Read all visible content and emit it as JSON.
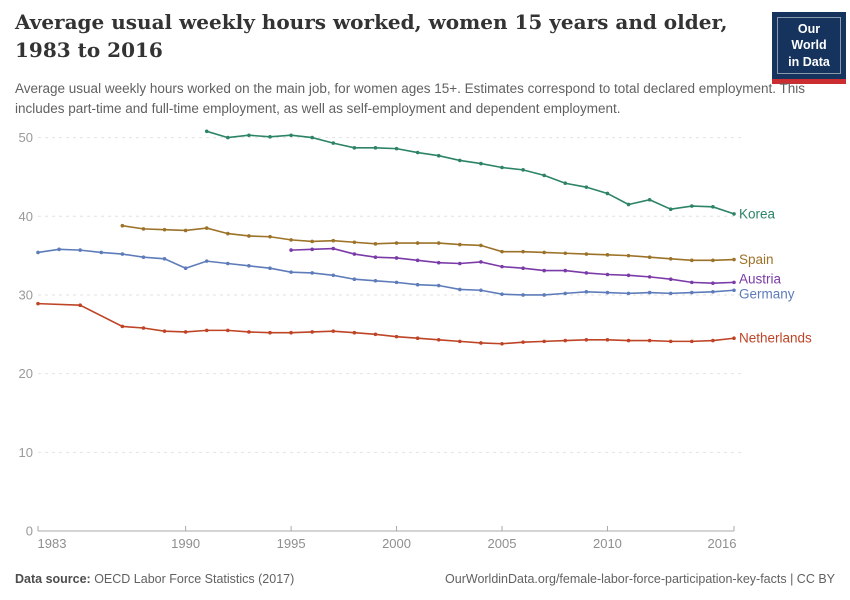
{
  "header": {
    "title": "Average usual weekly hours worked, women 15 years and older, 1983 to 2016",
    "subtitle": "Average usual weekly hours worked on the main job, for women ages 15+. Estimates correspond to total declared employment. This includes part-time and full-time employment, as well as self-employment and dependent employment."
  },
  "logo": {
    "line1": "Our World",
    "line2": "in Data",
    "bg_color": "#15335D",
    "bar_color": "#CB2D30"
  },
  "footer": {
    "data_source_label": "Data source:",
    "data_source_value": " OECD Labor Force Statistics (2017)",
    "attribution": "OurWorldinData.org/female-labor-force-participation-key-facts | CC BY"
  },
  "chart_data": {
    "type": "line",
    "title": "Average usual weekly hours worked, women 15 years and older, 1983 to 2016",
    "xlabel": "",
    "ylabel": "",
    "xlim": [
      1983,
      2016
    ],
    "ylim": [
      0,
      50
    ],
    "x_ticks": [
      1983,
      1990,
      1995,
      2000,
      2005,
      2010,
      2016
    ],
    "y_ticks": [
      0,
      10,
      20,
      30,
      40,
      50
    ],
    "grid": true,
    "legend_position": "right-end-labels",
    "axis_color": "#a8a8a8",
    "gridline_color": "#e2e2e2",
    "tick_label_color": "#8f8f8f",
    "series": [
      {
        "name": "Korea",
        "color": "#2C8465",
        "points": [
          [
            1991,
            50.8
          ],
          [
            1992,
            50.0
          ],
          [
            1993,
            50.3
          ],
          [
            1994,
            50.1
          ],
          [
            1995,
            50.3
          ],
          [
            1996,
            50.0
          ],
          [
            1997,
            49.3
          ],
          [
            1998,
            48.7
          ],
          [
            1999,
            48.7
          ],
          [
            2000,
            48.6
          ],
          [
            2001,
            48.1
          ],
          [
            2002,
            47.7
          ],
          [
            2003,
            47.1
          ],
          [
            2004,
            46.7
          ],
          [
            2005,
            46.2
          ],
          [
            2006,
            45.9
          ],
          [
            2007,
            45.2
          ],
          [
            2008,
            44.2
          ],
          [
            2009,
            43.7
          ],
          [
            2010,
            42.9
          ],
          [
            2011,
            41.5
          ],
          [
            2012,
            42.1
          ],
          [
            2013,
            40.9
          ],
          [
            2014,
            41.3
          ],
          [
            2015,
            41.2
          ],
          [
            2016,
            40.3
          ]
        ]
      },
      {
        "name": "Spain",
        "color": "#9C7228",
        "points": [
          [
            1987,
            38.8
          ],
          [
            1988,
            38.4
          ],
          [
            1989,
            38.3
          ],
          [
            1990,
            38.2
          ],
          [
            1991,
            38.5
          ],
          [
            1992,
            37.8
          ],
          [
            1993,
            37.5
          ],
          [
            1994,
            37.4
          ],
          [
            1995,
            37.0
          ],
          [
            1996,
            36.8
          ],
          [
            1997,
            36.9
          ],
          [
            1998,
            36.7
          ],
          [
            1999,
            36.5
          ],
          [
            2000,
            36.6
          ],
          [
            2001,
            36.6
          ],
          [
            2002,
            36.6
          ],
          [
            2003,
            36.4
          ],
          [
            2004,
            36.3
          ],
          [
            2005,
            35.5
          ],
          [
            2006,
            35.5
          ],
          [
            2007,
            35.4
          ],
          [
            2008,
            35.3
          ],
          [
            2009,
            35.2
          ],
          [
            2010,
            35.1
          ],
          [
            2011,
            35.0
          ],
          [
            2012,
            34.8
          ],
          [
            2013,
            34.6
          ],
          [
            2014,
            34.4
          ],
          [
            2015,
            34.4
          ],
          [
            2016,
            34.5
          ]
        ]
      },
      {
        "name": "Austria",
        "color": "#7A3BA8",
        "points": [
          [
            1995,
            35.7
          ],
          [
            1996,
            35.8
          ],
          [
            1997,
            35.9
          ],
          [
            1998,
            35.2
          ],
          [
            1999,
            34.8
          ],
          [
            2000,
            34.7
          ],
          [
            2001,
            34.4
          ],
          [
            2002,
            34.1
          ],
          [
            2003,
            34.0
          ],
          [
            2004,
            34.2
          ],
          [
            2005,
            33.6
          ],
          [
            2006,
            33.4
          ],
          [
            2007,
            33.1
          ],
          [
            2008,
            33.1
          ],
          [
            2009,
            32.8
          ],
          [
            2010,
            32.6
          ],
          [
            2011,
            32.5
          ],
          [
            2012,
            32.3
          ],
          [
            2013,
            32.0
          ],
          [
            2014,
            31.6
          ],
          [
            2015,
            31.5
          ],
          [
            2016,
            31.6
          ]
        ]
      },
      {
        "name": "Germany",
        "color": "#5E7CBA",
        "points": [
          [
            1983,
            35.4
          ],
          [
            1984,
            35.8
          ],
          [
            1985,
            35.7
          ],
          [
            1986,
            35.4
          ],
          [
            1987,
            35.2
          ],
          [
            1988,
            34.8
          ],
          [
            1989,
            34.6
          ],
          [
            1990,
            33.4
          ],
          [
            1991,
            34.3
          ],
          [
            1992,
            34.0
          ],
          [
            1993,
            33.7
          ],
          [
            1994,
            33.4
          ],
          [
            1995,
            32.9
          ],
          [
            1996,
            32.8
          ],
          [
            1997,
            32.5
          ],
          [
            1998,
            32.0
          ],
          [
            1999,
            31.8
          ],
          [
            2000,
            31.6
          ],
          [
            2001,
            31.3
          ],
          [
            2002,
            31.2
          ],
          [
            2003,
            30.7
          ],
          [
            2004,
            30.6
          ],
          [
            2005,
            30.1
          ],
          [
            2006,
            30.0
          ],
          [
            2007,
            30.0
          ],
          [
            2008,
            30.2
          ],
          [
            2009,
            30.4
          ],
          [
            2010,
            30.3
          ],
          [
            2011,
            30.2
          ],
          [
            2012,
            30.3
          ],
          [
            2013,
            30.2
          ],
          [
            2014,
            30.3
          ],
          [
            2015,
            30.4
          ],
          [
            2016,
            30.6
          ]
        ]
      },
      {
        "name": "Netherlands",
        "color": "#BE4425",
        "points": [
          [
            1983,
            28.9
          ],
          [
            1985,
            28.7
          ],
          [
            1987,
            26.0
          ],
          [
            1988,
            25.8
          ],
          [
            1989,
            25.4
          ],
          [
            1990,
            25.3
          ],
          [
            1991,
            25.5
          ],
          [
            1992,
            25.5
          ],
          [
            1993,
            25.3
          ],
          [
            1994,
            25.2
          ],
          [
            1995,
            25.2
          ],
          [
            1996,
            25.3
          ],
          [
            1997,
            25.4
          ],
          [
            1998,
            25.2
          ],
          [
            1999,
            25.0
          ],
          [
            2000,
            24.7
          ],
          [
            2001,
            24.5
          ],
          [
            2002,
            24.3
          ],
          [
            2003,
            24.1
          ],
          [
            2004,
            23.9
          ],
          [
            2005,
            23.8
          ],
          [
            2006,
            24.0
          ],
          [
            2007,
            24.1
          ],
          [
            2008,
            24.2
          ],
          [
            2009,
            24.3
          ],
          [
            2010,
            24.3
          ],
          [
            2011,
            24.2
          ],
          [
            2012,
            24.2
          ],
          [
            2013,
            24.1
          ],
          [
            2014,
            24.1
          ],
          [
            2015,
            24.2
          ],
          [
            2016,
            24.5
          ]
        ]
      }
    ]
  }
}
